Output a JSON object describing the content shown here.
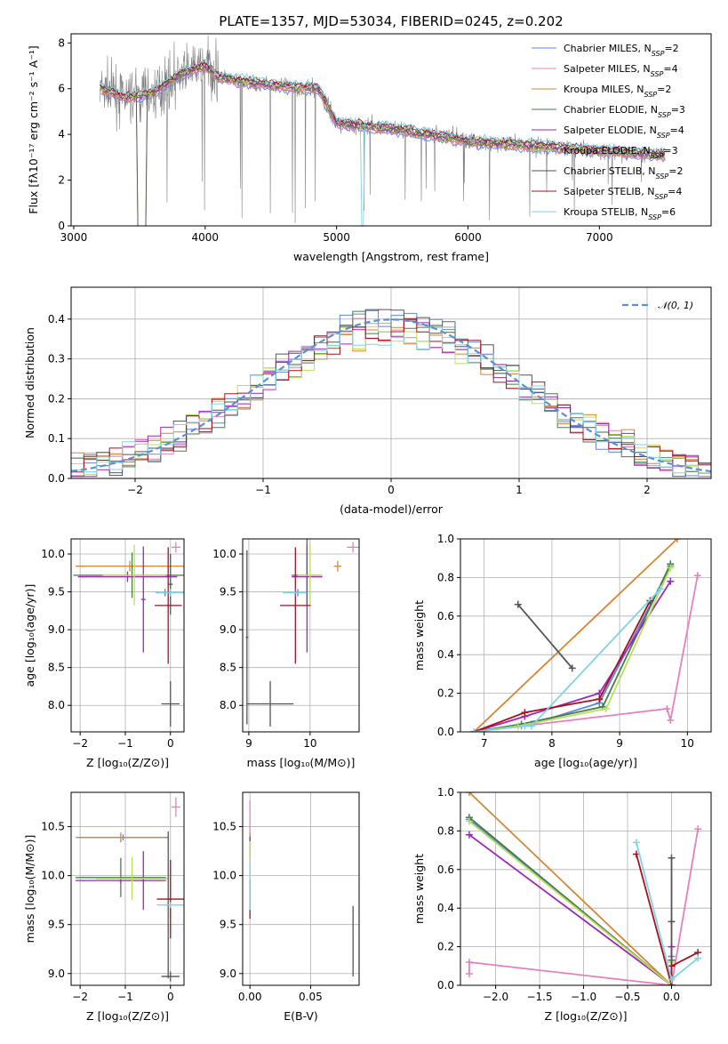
{
  "title": "PLATE=1357, MJD=53034, FIBERID=0245, z=0.202",
  "models": [
    {
      "name": "Chabrier MILES, N",
      "sub": "SSP",
      "suffix": "=2",
      "color": "#5b87e6"
    },
    {
      "name": "Salpeter MILES, N",
      "sub": "SSP",
      "suffix": "=4",
      "color": "#e580c0"
    },
    {
      "name": "Kroupa MILES, N",
      "sub": "SSP",
      "suffix": "=2",
      "color": "#d98433"
    },
    {
      "name": "Chabrier ELODIE, N",
      "sub": "SSP",
      "suffix": "=3",
      "color": "#4a7a4a"
    },
    {
      "name": "Salpeter ELODIE, N",
      "sub": "SSP",
      "suffix": "=4",
      "color": "#9b27b8"
    },
    {
      "name": "Kroupa ELODIE, N",
      "sub": "SSP",
      "suffix": "=3",
      "color": "#b8e05a"
    },
    {
      "name": "Chabrier STELIB, N",
      "sub": "SSP",
      "suffix": "=2",
      "color": "#555555"
    },
    {
      "name": "Salpeter STELIB, N",
      "sub": "SSP",
      "suffix": "=4",
      "color": "#a8101e"
    },
    {
      "name": "Kroupa STELIB, N",
      "sub": "SSP",
      "suffix": "=6",
      "color": "#7fd3e8"
    }
  ],
  "chart_data": [
    {
      "id": "spectrum",
      "type": "line",
      "xlabel": "wavelength [Angstrom, rest frame]",
      "ylabel": "Flux [fλ10⁻¹⁷ erg cm⁻² s⁻¹ A⁻¹]",
      "xlim": [
        2980,
        7850
      ],
      "ylim": [
        0,
        8.4
      ],
      "xticks": [
        3000,
        4000,
        5000,
        6000,
        7000
      ],
      "yticks": [
        0,
        2,
        4,
        6,
        8
      ],
      "model_continuum": {
        "x": [
          3200,
          3300,
          3400,
          3500,
          3600,
          3700,
          3800,
          3900,
          4000,
          4100,
          4300,
          4600,
          4860,
          5000,
          5500,
          6000,
          6500,
          7000,
          7500
        ],
        "y": [
          6.0,
          5.8,
          5.6,
          5.7,
          5.8,
          6.2,
          6.6,
          6.8,
          7.0,
          6.5,
          6.3,
          6.1,
          6.0,
          4.5,
          4.2,
          3.7,
          3.5,
          3.3,
          3.1
        ]
      },
      "data_color": "#808080"
    },
    {
      "id": "residuals",
      "type": "step",
      "xlabel": "(data-model)/error",
      "ylabel": "Normed distribution",
      "xlim": [
        -2.5,
        2.5
      ],
      "ylim": [
        0,
        0.48
      ],
      "xticks": [
        -2,
        -1,
        0,
        1,
        2
      ],
      "yticks": [
        0.0,
        0.1,
        0.2,
        0.3,
        0.4
      ],
      "reference": {
        "label": "𝒩(0, 1)",
        "color": "#5b8fd6"
      },
      "bin_width": 0.1
    },
    {
      "id": "age_vs_Z",
      "type": "errorbar",
      "xlabel": "Z [log₁₀(Z/Z⊙)]",
      "ylabel": "age [log₁₀(age/yr)]",
      "xlim": [
        -2.2,
        0.3
      ],
      "ylim": [
        7.65,
        10.2
      ],
      "xticks": [
        -2,
        -1,
        0
      ],
      "yticks": [
        8.0,
        8.5,
        9.0,
        9.5,
        10.0
      ],
      "points": [
        {
          "m": 0,
          "x": -0.12,
          "y": 9.49,
          "ex": 0.2,
          "ey": 0.05
        },
        {
          "m": 1,
          "x": 0.12,
          "y": 10.09,
          "ex": 0.1,
          "ey": 0.07
        },
        {
          "m": 2,
          "x": -0.9,
          "y": 9.84,
          "ex": 1.2,
          "ey": 0.07
        },
        {
          "m": 3,
          "x": -0.85,
          "y": 9.72,
          "ex": 1.3,
          "ey": 0.3
        },
        {
          "m": 4,
          "x": -0.95,
          "y": 9.7,
          "ex": 1.1,
          "ey": 0.07
        },
        {
          "m": 4,
          "x": -0.6,
          "y": 9.4,
          "ex": 0.05,
          "ey": 0.7
        },
        {
          "m": 5,
          "x": -0.8,
          "y": 9.72,
          "ex": 0.7,
          "ey": 0.4
        },
        {
          "m": 6,
          "x": 0.0,
          "y": 8.02,
          "ex": 0.2,
          "ey": 0.3
        },
        {
          "m": 6,
          "x": 0.0,
          "y": 9.6,
          "ex": 0.05,
          "ey": 0.4
        },
        {
          "m": 7,
          "x": -0.05,
          "y": 9.32,
          "ex": 0.3,
          "ey": 0.77
        },
        {
          "m": 8,
          "x": 0.0,
          "y": 9.49,
          "ex": 0.3,
          "ey": 0.05
        }
      ]
    },
    {
      "id": "age_vs_mass",
      "type": "errorbar",
      "xlabel": "mass [log₁₀(M/M⊙)]",
      "ylabel": "",
      "xlim": [
        8.9,
        10.8
      ],
      "ylim": [
        7.65,
        10.2
      ],
      "xticks": [
        9,
        10
      ],
      "yticks": [
        8.0,
        8.5,
        9.0,
        9.5,
        10.0
      ],
      "points": [
        {
          "m": 0,
          "x": 9.8,
          "y": 9.49,
          "ex": 0.15,
          "ey": 0.05
        },
        {
          "m": 1,
          "x": 10.7,
          "y": 10.09,
          "ex": 0.1,
          "ey": 0.07
        },
        {
          "m": 2,
          "x": 10.45,
          "y": 9.84,
          "ex": 0.06,
          "ey": 0.07
        },
        {
          "m": 3,
          "x": 9.95,
          "y": 9.72,
          "ex": 0.25,
          "ey": 0.4
        },
        {
          "m": 4,
          "x": 9.95,
          "y": 9.7,
          "ex": 0.25,
          "ey": 1.0
        },
        {
          "m": 5,
          "x": 10.0,
          "y": 9.72,
          "ex": 0.2,
          "ey": 0.4
        },
        {
          "m": 6,
          "x": 9.35,
          "y": 8.02,
          "ex": 0.38,
          "ey": 0.3
        },
        {
          "m": 6,
          "x": 8.97,
          "y": 8.9,
          "ex": 0.02,
          "ey": 1.15
        },
        {
          "m": 7,
          "x": 9.76,
          "y": 9.32,
          "ex": 0.25,
          "ey": 0.77
        },
        {
          "m": 8,
          "x": 9.75,
          "y": 9.49,
          "ex": 0.2,
          "ey": 0.05
        }
      ]
    },
    {
      "id": "weight_vs_age",
      "type": "line",
      "xlabel": "age [log₁₀(age/yr)]",
      "ylabel": "mass weight",
      "xlim": [
        6.65,
        10.35
      ],
      "ylim": [
        0,
        1
      ],
      "xticks": [
        7,
        8,
        9,
        10
      ],
      "yticks": [
        0.0,
        0.2,
        0.4,
        0.6,
        0.8,
        1.0
      ],
      "series": [
        {
          "m": 0,
          "x": [
            6.85,
            7.7,
            8.7,
            9.75
          ],
          "y": [
            0.0,
            0.04,
            0.15,
            0.86
          ]
        },
        {
          "m": 1,
          "x": [
            7.55,
            9.7,
            9.75,
            10.15
          ],
          "y": [
            0.03,
            0.12,
            0.06,
            0.81
          ]
        },
        {
          "m": 2,
          "x": [
            6.85,
            9.85
          ],
          "y": [
            0.0,
            1.0
          ]
        },
        {
          "m": 3,
          "x": [
            6.85,
            7.55,
            8.75,
            9.75
          ],
          "y": [
            0.0,
            0.04,
            0.13,
            0.87
          ]
        },
        {
          "m": 4,
          "x": [
            6.85,
            7.6,
            8.7,
            9.75
          ],
          "y": [
            0.0,
            0.08,
            0.2,
            0.78
          ]
        },
        {
          "m": 5,
          "x": [
            6.85,
            7.5,
            8.8,
            9.75
          ],
          "y": [
            0.0,
            0.03,
            0.12,
            0.85
          ]
        },
        {
          "m": 6,
          "x": [
            7.5,
            8.3
          ],
          "y": [
            0.66,
            0.33
          ]
        },
        {
          "m": 7,
          "x": [
            6.85,
            7.6,
            8.7,
            9.45
          ],
          "y": [
            0.0,
            0.1,
            0.17,
            0.68
          ]
        },
        {
          "m": 8,
          "x": [
            6.85,
            7.6,
            7.7,
            9.6
          ],
          "y": [
            0.0,
            0.03,
            0.03,
            0.74
          ]
        }
      ]
    },
    {
      "id": "mass_vs_Z",
      "type": "errorbar",
      "xlabel": "Z [log₁₀(Z/Z⊙)]",
      "ylabel": "mass [log₁₀(M/M⊙)]",
      "xlim": [
        -2.2,
        0.3
      ],
      "ylim": [
        8.88,
        10.85
      ],
      "xticks": [
        -2,
        -1,
        0
      ],
      "yticks": [
        9.0,
        9.5,
        10.0,
        10.5
      ],
      "points": [
        {
          "m": 0,
          "x": -1.05,
          "y": 10.39,
          "ex": 1.0,
          "ey": 0.03
        },
        {
          "m": 1,
          "x": 0.12,
          "y": 10.7,
          "ex": 0.1,
          "ey": 0.1
        },
        {
          "m": 2,
          "x": -1.1,
          "y": 10.39,
          "ex": 1.0,
          "ey": 0.05
        },
        {
          "m": 3,
          "x": -1.1,
          "y": 9.98,
          "ex": 1.0,
          "ey": 0.2
        },
        {
          "m": 4,
          "x": -1.1,
          "y": 9.95,
          "ex": 1.0,
          "ey": 0.03
        },
        {
          "m": 4,
          "x": -0.6,
          "y": 9.95,
          "ex": 0.05,
          "ey": 0.3
        },
        {
          "m": 5,
          "x": -0.85,
          "y": 9.97,
          "ex": 0.8,
          "ey": 0.22
        },
        {
          "m": 6,
          "x": 0.0,
          "y": 8.97,
          "ex": 0.2,
          "ey": 0.05
        },
        {
          "m": 6,
          "x": -0.05,
          "y": 9.7,
          "ex": 0.05,
          "ey": 0.75
        },
        {
          "m": 7,
          "x": 0.0,
          "y": 9.76,
          "ex": 0.3,
          "ey": 0.4
        },
        {
          "m": 8,
          "x": 0.0,
          "y": 9.7,
          "ex": 0.3,
          "ey": 0.03
        }
      ]
    },
    {
      "id": "mass_vs_ebv",
      "type": "errorbar",
      "xlabel": "E(B-V)",
      "ylabel": "",
      "xlim": [
        -0.006,
        0.09
      ],
      "ylim": [
        8.88,
        10.85
      ],
      "xticks": [
        0.0,
        0.05
      ],
      "xticklabels": [
        "0.00",
        "0.05"
      ],
      "yticks": [
        9.0,
        9.5,
        10.0,
        10.5
      ],
      "points": [
        {
          "m": 0,
          "x": 0.0,
          "y": 10.39,
          "ex": 0.0,
          "ey": 0.03
        },
        {
          "m": 1,
          "x": 0.0,
          "y": 10.55,
          "ex": 0.0,
          "ey": 0.22
        },
        {
          "m": 2,
          "x": 0.0,
          "y": 10.39,
          "ex": 0.0,
          "ey": 0.05
        },
        {
          "m": 3,
          "x": 0.0,
          "y": 9.98,
          "ex": 0.0,
          "ey": 0.3
        },
        {
          "m": 4,
          "x": 0.0,
          "y": 10.3,
          "ex": 0.0,
          "ey": 0.1
        },
        {
          "m": 5,
          "x": 0.0,
          "y": 10.0,
          "ex": 0.0,
          "ey": 0.35
        },
        {
          "m": 6,
          "x": 0.085,
          "y": 9.33,
          "ex": 0.0,
          "ey": 0.36
        },
        {
          "m": 7,
          "x": 0.0,
          "y": 9.76,
          "ex": 0.0,
          "ey": 0.2
        },
        {
          "m": 8,
          "x": 0.0,
          "y": 9.9,
          "ex": 0.0,
          "ey": 0.25
        }
      ]
    },
    {
      "id": "weight_vs_Z",
      "type": "line",
      "xlabel": "Z [log₁₀(Z/Z⊙)]",
      "ylabel": "mass weight",
      "xlim": [
        -2.4,
        0.45
      ],
      "ylim": [
        0,
        1
      ],
      "xticks": [
        -2.0,
        -1.5,
        -1.0,
        -0.5,
        0.0
      ],
      "xticklabels": [
        "−2.0",
        "−1.5",
        "−1.0",
        "−0.5",
        "0.0"
      ],
      "yticks": [
        0.0,
        0.2,
        0.4,
        0.6,
        0.8,
        1.0
      ],
      "series": [
        {
          "m": 0,
          "x": [
            -2.3,
            0.0,
            0.0
          ],
          "y": [
            0.86,
            0.0,
            0.15
          ]
        },
        {
          "m": 1,
          "x": [
            -2.3,
            -2.3,
            0.0,
            0.3
          ],
          "y": [
            0.06,
            0.12,
            0.0,
            0.81
          ]
        },
        {
          "m": 2,
          "x": [
            -2.3,
            0.0
          ],
          "y": [
            1.0,
            0.0
          ]
        },
        {
          "m": 3,
          "x": [
            -2.3,
            0.0,
            0.0
          ],
          "y": [
            0.87,
            0.0,
            0.13
          ]
        },
        {
          "m": 4,
          "x": [
            -2.3,
            0.0,
            0.0
          ],
          "y": [
            0.78,
            0.0,
            0.2
          ]
        },
        {
          "m": 5,
          "x": [
            -2.3,
            0.0,
            0.0
          ],
          "y": [
            0.85,
            0.0,
            0.12
          ]
        },
        {
          "m": 6,
          "x": [
            0.0,
            0.0,
            0.0
          ],
          "y": [
            0.66,
            0.33,
            0.0
          ]
        },
        {
          "m": 7,
          "x": [
            -0.4,
            0.0,
            0.0,
            0.3
          ],
          "y": [
            0.68,
            0.0,
            0.1,
            0.17
          ]
        },
        {
          "m": 8,
          "x": [
            -0.4,
            0.0,
            0.0,
            0.3
          ],
          "y": [
            0.74,
            0.03,
            0.03,
            0.14
          ]
        }
      ]
    }
  ]
}
